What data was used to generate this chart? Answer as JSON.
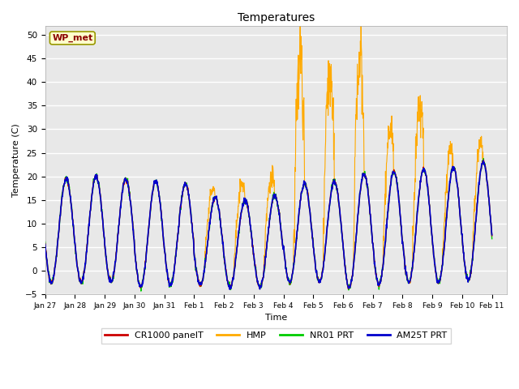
{
  "title": "Temperatures",
  "xlabel": "Time",
  "ylabel": "Temperature (C)",
  "ylim": [
    -5,
    52
  ],
  "yticks": [
    -5,
    0,
    5,
    10,
    15,
    20,
    25,
    30,
    35,
    40,
    45,
    50
  ],
  "line_colors": {
    "CR1000 panelT": "#cc0000",
    "HMP": "#ffaa00",
    "NR01 PRT": "#00cc00",
    "AM25T PRT": "#0000cc"
  },
  "annotation_text": "WP_met",
  "annotation_color": "#8b0000",
  "annotation_bg": "#ffffcc",
  "annotation_border": "#999900",
  "xtick_labels": [
    "Jan 27",
    "Jan 28",
    "Jan 29",
    "Jan 30",
    "Jan 31",
    "Feb 1",
    "Feb 2",
    "Feb 3",
    "Feb 4",
    "Feb 5",
    "Feb 6",
    "Feb 7",
    "Feb 8",
    "Feb 9",
    "Feb 10",
    "Feb 11"
  ],
  "figsize": [
    6.4,
    4.8
  ],
  "dpi": 100
}
